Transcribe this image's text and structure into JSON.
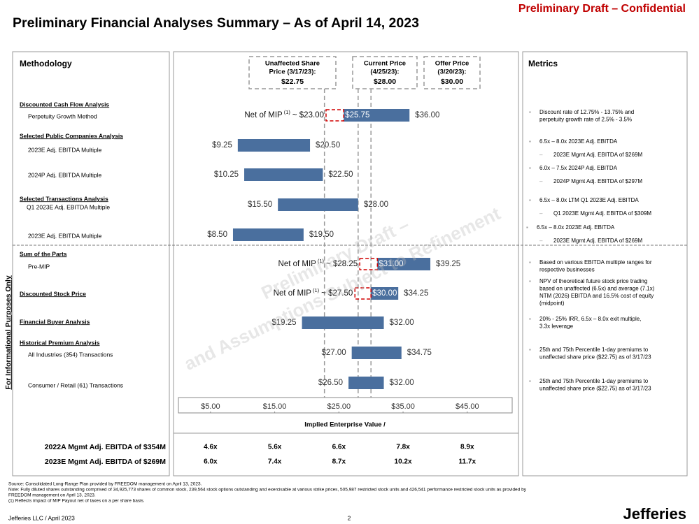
{
  "header": {
    "title": "Preliminary Financial Analyses Summary – As of April 14, 2023",
    "confidential": "Preliminary Draft – Confidential"
  },
  "side_note": "For Informational Purposes Only",
  "panel_titles": {
    "methodology": "Methodology",
    "metrics": "Metrics"
  },
  "watermark": [
    "Preliminary Draft –",
    "and Assumptions Subject to Refinement"
  ],
  "chart_data": {
    "type": "football_field",
    "x_label": "Implied Enterprise Value /",
    "xlim": [
      0,
      52
    ],
    "xticks": [
      {
        "value": 5,
        "label": "$5.00"
      },
      {
        "value": 15,
        "label": "$15.00"
      },
      {
        "value": 25,
        "label": "$25.00"
      },
      {
        "value": 35,
        "label": "$35.00"
      },
      {
        "value": 45,
        "label": "$45.00"
      }
    ],
    "bar_color": "#4a6f9e",
    "reference_lines": [
      {
        "name_lines": [
          "Unaffected Share",
          "Price (3/17/23):"
        ],
        "value": 22.75,
        "label": "$22.75"
      },
      {
        "name_lines": [
          "Current Price",
          "(4/25/23):"
        ],
        "value": 28.0,
        "label": "$28.00"
      },
      {
        "name_lines": [
          "Offer Price",
          "(3/20/23):"
        ],
        "value": 30.0,
        "label": "$30.00"
      }
    ],
    "rows": [
      {
        "low": 25.75,
        "high": 36.0,
        "value_labels": [
          "$25.75",
          "$36.00"
        ],
        "net": {
          "prefix": "Net of MIP",
          "note": "(1)",
          "value": 23.0,
          "label": "~ $23.00"
        }
      },
      {
        "low": 9.25,
        "high": 20.5,
        "value_labels": [
          "$9.25",
          "$20.50"
        ]
      },
      {
        "low": 10.25,
        "high": 22.5,
        "value_labels": [
          "$10.25",
          "$22.50"
        ]
      },
      {
        "low": 15.5,
        "high": 28.0,
        "value_labels": [
          "$15.50",
          "$28.00"
        ]
      },
      {
        "low": 8.5,
        "high": 19.5,
        "value_labels": [
          "$8.50",
          "$19.50"
        ]
      },
      {
        "low": 31.0,
        "high": 39.25,
        "value_labels": [
          "$31.00",
          "$39.25"
        ],
        "net": {
          "prefix": "Net of MIP",
          "note": "(1)",
          "value": 28.25,
          "label": "~ $28.25"
        }
      },
      {
        "low": 30.0,
        "high": 34.25,
        "value_labels": [
          "$30.00",
          "$34.25"
        ],
        "net": {
          "prefix": "Net of MIP",
          "note": "(1)",
          "value": 27.5,
          "label": "~ $27.50"
        }
      },
      {
        "low": 19.25,
        "high": 32.0,
        "value_labels": [
          "$19.25",
          "$32.00"
        ]
      },
      {
        "low": 27.0,
        "high": 34.75,
        "value_labels": [
          "$27.00",
          "$34.75"
        ]
      },
      {
        "low": 26.5,
        "high": 32.0,
        "value_labels": [
          "$26.50",
          "$32.00"
        ]
      }
    ]
  },
  "methodology": [
    {
      "section": "Discounted Cash Flow Analysis",
      "label": "Perpetuity Growth Method"
    },
    {
      "section": "Selected Public Companies Analysis",
      "label": "2023E Adj. EBITDA Multiple"
    },
    {
      "label": "2024P Adj. EBITDA Multiple"
    },
    {
      "section": "Selected Transactions Analysis",
      "label": "Q1 2023E Adj. EBITDA Multiple"
    },
    {
      "label": "2023E Adj. EBITDA Multiple"
    },
    {
      "section": "Sum of the Parts",
      "label": "Pre-MIP"
    },
    {
      "section": "Discounted Stock Price"
    },
    {
      "section": "Financial Buyer Analysis"
    },
    {
      "section": "Historical Premium Analysis",
      "label": "All Industries (354) Transactions"
    },
    {
      "label": "Consumer / Retail (61) Transactions"
    }
  ],
  "metrics": [
    {
      "level": 1,
      "lines": [
        "Discount rate of 12.75% - 13.75% and",
        "perpetuity growth rate of 2.5% - 3.5%"
      ]
    },
    {
      "level": 1,
      "lines": [
        "6.5x – 8.0x 2023E Adj. EBITDA"
      ]
    },
    {
      "level": 2,
      "lines": [
        "2023E Mgmt Adj. EBITDA of $269M"
      ]
    },
    {
      "level": 1,
      "lines": [
        "6.0x – 7.5x 2024P Adj. EBITDA"
      ]
    },
    {
      "level": 2,
      "lines": [
        "2024P Mgmt Adj. EBITDA of $297M"
      ]
    },
    {
      "level": 1,
      "lines": [
        "6.5x – 8.0x LTM Q1 2023E Adj. EBITDA"
      ]
    },
    {
      "level": 2,
      "lines": [
        "Q1 2023E Mgmt Adj. EBITDA of $309M"
      ]
    },
    {
      "level": 1,
      "lines": [
        "6.5x – 8.0x 2023E Adj. EBITDA"
      ]
    },
    {
      "level": 2,
      "lines": [
        "2023E Mgmt Adj. EBITDA of $269M"
      ]
    },
    {
      "level": 1,
      "lines": [
        "Based on various EBITDA multiple ranges for",
        "respective businesses"
      ]
    },
    {
      "level": 1,
      "lines": [
        "NPV of theoretical future stock price trading",
        "based on unaffected (6.5x) and average (7.1x)",
        "NTM (2026) EBITDA and 16.5% cost of equity",
        "(midpoint)"
      ]
    },
    {
      "level": 1,
      "lines": [
        "20% - 25% IRR, 6.5x – 8.0x exit multiple,",
        "3.3x leverage"
      ]
    },
    {
      "level": 1,
      "lines": [
        "25th and 75th Percentile 1-day premiums to",
        "unaffected share price ($22.75) as of 3/17/23"
      ]
    },
    {
      "level": 1,
      "lines": [
        "25th and 75th Percentile 1-day premiums to",
        "unaffected share price ($22.75) as of 3/17/23"
      ]
    }
  ],
  "ebitda_table": [
    {
      "label": "2022A Mgmt Adj. EBITDA of $354M",
      "multiples": [
        "4.6x",
        "5.6x",
        "6.6x",
        "7.8x",
        "8.9x"
      ]
    },
    {
      "label": "2023E Mgmt Adj. EBITDA of $269M",
      "multiples": [
        "6.0x",
        "7.4x",
        "8.7x",
        "10.2x",
        "11.7x"
      ]
    }
  ],
  "footer": {
    "notes": [
      "Source: Consolidated Long-Range Plan provided by FREEDOM management on April 13, 2023.",
      "Note: Fully diluted shares outstanding comprised of 34,925,773 shares of common stock, 239,564 stock options outstanding and exercisable at various strike prices, 505,987 restricted stock units and 426,541 performance restricted stock units as provided by",
      "FREEDOM management on April 13, 2023.",
      "(1)     Reflects impact of MIP Payout net of taxes on a per share basis."
    ],
    "company_date": "Jefferies LLC / April 2023",
    "page": "2",
    "logo": "Jefferies"
  }
}
